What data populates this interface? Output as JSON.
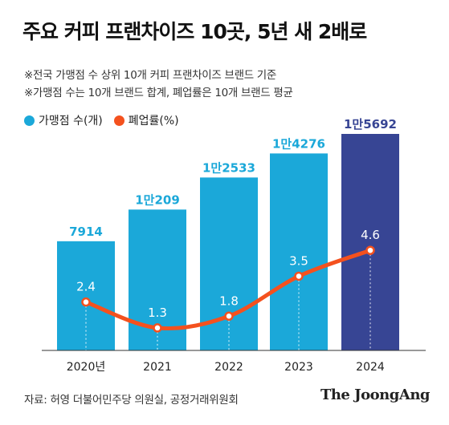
{
  "title": "주요 커피 프랜차이즈 10곳, 5년 새 2배로",
  "notes": [
    "※전국 가맹점 수 상위 10개 커피 프랜차이즈 브랜드 기준",
    "※가맹점 수는 10개 브랜드 합계, 폐업률은 10개 브랜드 평균"
  ],
  "source": "자료: 허영 더불어민주당 의원실, 공정거래위원회",
  "logo": "The JoongAng",
  "colors": {
    "bar": "#1BA8D9",
    "bar_highlight": "#374594",
    "line": "#F4511E",
    "text": "#222222"
  },
  "chart_data": {
    "type": "bar",
    "categories": [
      "2020년",
      "2021",
      "2022",
      "2023",
      "2024"
    ],
    "series": [
      {
        "name": "가맹점 수(개)",
        "type": "bar",
        "values": [
          7914,
          10209,
          12533,
          14276,
          15692
        ],
        "labels": [
          "7914",
          "1만209",
          "1만2533",
          "1만4276",
          "1만5692"
        ]
      },
      {
        "name": "폐업률(%)",
        "type": "line",
        "values": [
          2.4,
          1.3,
          1.8,
          3.5,
          4.6
        ],
        "labels": [
          "2.4",
          "1.3",
          "1.8",
          "3.5",
          "4.6"
        ]
      }
    ],
    "highlight_index": 4,
    "legend": "top-left",
    "grid": false
  }
}
